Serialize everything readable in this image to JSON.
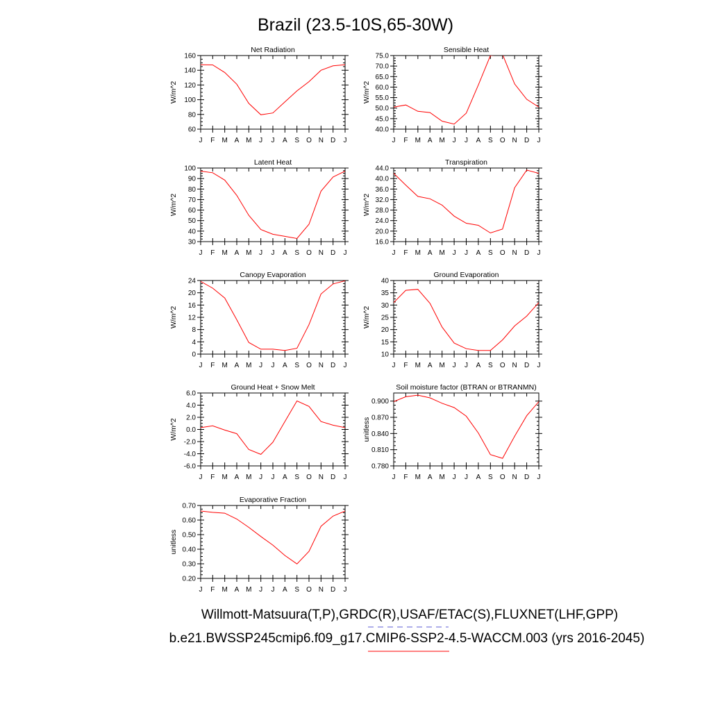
{
  "page": {
    "title": "Brazil (23.5-10S,65-30W)",
    "legend_line_1": "Willmott-Matsuura(T,P),GRDC(R),USAF/ETAC(S),FLUXNET(LHF,GPP)",
    "legend_line_2": "b.e21.BWSSP245cmip6.f09_g17.CMIP6-SSP2-4.5-WACCM.003 (yrs 2016-2045)",
    "legend_line_1_color": "#5b5bd6",
    "legend_line_2_color": "#ff0000",
    "series_color": "#ff0000"
  },
  "chart_data": [
    {
      "type": "line",
      "title": "Net Radiation",
      "ylabel": "W/m^2",
      "categories": [
        "J",
        "F",
        "M",
        "A",
        "M",
        "J",
        "J",
        "A",
        "S",
        "O",
        "N",
        "D",
        "J"
      ],
      "values": [
        147.5,
        147.3,
        137,
        121,
        95,
        79.5,
        82,
        97,
        112,
        124.5,
        140,
        146,
        147.5
      ],
      "ylim": [
        60,
        160
      ],
      "yticks": [
        "60",
        "80",
        "100",
        "120",
        "140",
        "160"
      ]
    },
    {
      "type": "line",
      "title": "Sensible Heat",
      "ylabel": "W/m^2",
      "categories": [
        "J",
        "F",
        "M",
        "A",
        "M",
        "J",
        "J",
        "A",
        "S",
        "O",
        "N",
        "D",
        "J"
      ],
      "values": [
        50.5,
        51.5,
        48.5,
        47.9,
        43.8,
        42.4,
        47.6,
        61,
        75,
        75.5,
        61.5,
        54.2,
        50.5
      ],
      "ylim": [
        40,
        75
      ],
      "yticks": [
        "40.0",
        "45.0",
        "50.0",
        "55.0",
        "60.0",
        "65.0",
        "70.0",
        "75.0"
      ]
    },
    {
      "type": "line",
      "title": "Latent Heat",
      "ylabel": "W/m^2",
      "categories": [
        "J",
        "F",
        "M",
        "A",
        "M",
        "J",
        "J",
        "A",
        "S",
        "O",
        "N",
        "D",
        "J"
      ],
      "values": [
        97,
        95.5,
        88.5,
        74,
        55,
        41.5,
        37,
        35,
        33,
        46.5,
        78,
        91.5,
        97
      ],
      "ylim": [
        30,
        100
      ],
      "yticks": [
        "30",
        "40",
        "50",
        "60",
        "70",
        "80",
        "90",
        "100"
      ]
    },
    {
      "type": "line",
      "title": "Transpiration",
      "ylabel": "W/m^2",
      "categories": [
        "J",
        "F",
        "M",
        "A",
        "M",
        "J",
        "J",
        "A",
        "S",
        "O",
        "N",
        "D",
        "J"
      ],
      "values": [
        42,
        37.5,
        33.2,
        32.3,
        29.9,
        25.7,
        23,
        22.2,
        19.3,
        20.8,
        36.5,
        43.2,
        42
      ],
      "ylim": [
        16,
        44
      ],
      "yticks": [
        "16.0",
        "20.0",
        "24.0",
        "28.0",
        "32.0",
        "36.0",
        "40.0",
        "44.0"
      ]
    },
    {
      "type": "line",
      "title": "Canopy Evaporation",
      "ylabel": "W/m^2",
      "categories": [
        "J",
        "F",
        "M",
        "A",
        "M",
        "J",
        "J",
        "A",
        "S",
        "O",
        "N",
        "D",
        "J"
      ],
      "values": [
        23.7,
        21.5,
        18.3,
        11.2,
        3.8,
        1.6,
        1.6,
        1.2,
        1.9,
        9.6,
        19.6,
        22.9,
        23.9
      ],
      "ylim": [
        0,
        24
      ],
      "yticks": [
        "0",
        "4",
        "8",
        "12",
        "16",
        "20",
        "24"
      ]
    },
    {
      "type": "line",
      "title": "Ground Evaporation",
      "ylabel": "W/m^2",
      "categories": [
        "J",
        "F",
        "M",
        "A",
        "M",
        "J",
        "J",
        "A",
        "S",
        "O",
        "N",
        "D",
        "J"
      ],
      "values": [
        31,
        36,
        36.4,
        30.7,
        21,
        14.5,
        12.2,
        11.5,
        11.5,
        15.8,
        21.5,
        25.5,
        31
      ],
      "ylim": [
        10,
        40
      ],
      "yticks": [
        "10",
        "15",
        "20",
        "25",
        "30",
        "35",
        "40"
      ]
    },
    {
      "type": "line",
      "title": "Ground Heat + Snow Melt",
      "ylabel": "W/m^2",
      "categories": [
        "J",
        "F",
        "M",
        "A",
        "M",
        "J",
        "J",
        "A",
        "S",
        "O",
        "N",
        "D",
        "J"
      ],
      "values": [
        0.3,
        0.6,
        -0.1,
        -0.7,
        -3.3,
        -4.1,
        -2.1,
        1.3,
        4.7,
        3.8,
        1.3,
        0.7,
        0.3
      ],
      "ylim": [
        -6,
        6
      ],
      "yticks": [
        "-6.0",
        "-4.0",
        "-2.0",
        "0.0",
        "2.0",
        "4.0",
        "6.0"
      ]
    },
    {
      "type": "line",
      "title": "Soil moisture factor (BTRAN or BTRANMN)",
      "ylabel": "unitless",
      "categories": [
        "J",
        "F",
        "M",
        "A",
        "M",
        "J",
        "J",
        "A",
        "S",
        "O",
        "N",
        "D",
        "J"
      ],
      "values": [
        0.899,
        0.908,
        0.911,
        0.906,
        0.896,
        0.888,
        0.872,
        0.841,
        0.801,
        0.794,
        0.835,
        0.873,
        0.899
      ],
      "ylim": [
        0.78,
        0.915
      ],
      "yticks": [
        "0.780",
        "0.810",
        "0.840",
        "0.870",
        "0.900"
      ]
    },
    {
      "type": "line",
      "title": "Evaporative Fraction",
      "ylabel": "unitless",
      "categories": [
        "J",
        "F",
        "M",
        "A",
        "M",
        "J",
        "J",
        "A",
        "S",
        "O",
        "N",
        "D",
        "J"
      ],
      "values": [
        0.662,
        0.653,
        0.647,
        0.607,
        0.55,
        0.487,
        0.428,
        0.357,
        0.299,
        0.385,
        0.557,
        0.627,
        0.662
      ],
      "ylim": [
        0.2,
        0.7
      ],
      "yticks": [
        "0.20",
        "0.30",
        "0.40",
        "0.50",
        "0.60",
        "0.70"
      ]
    }
  ]
}
